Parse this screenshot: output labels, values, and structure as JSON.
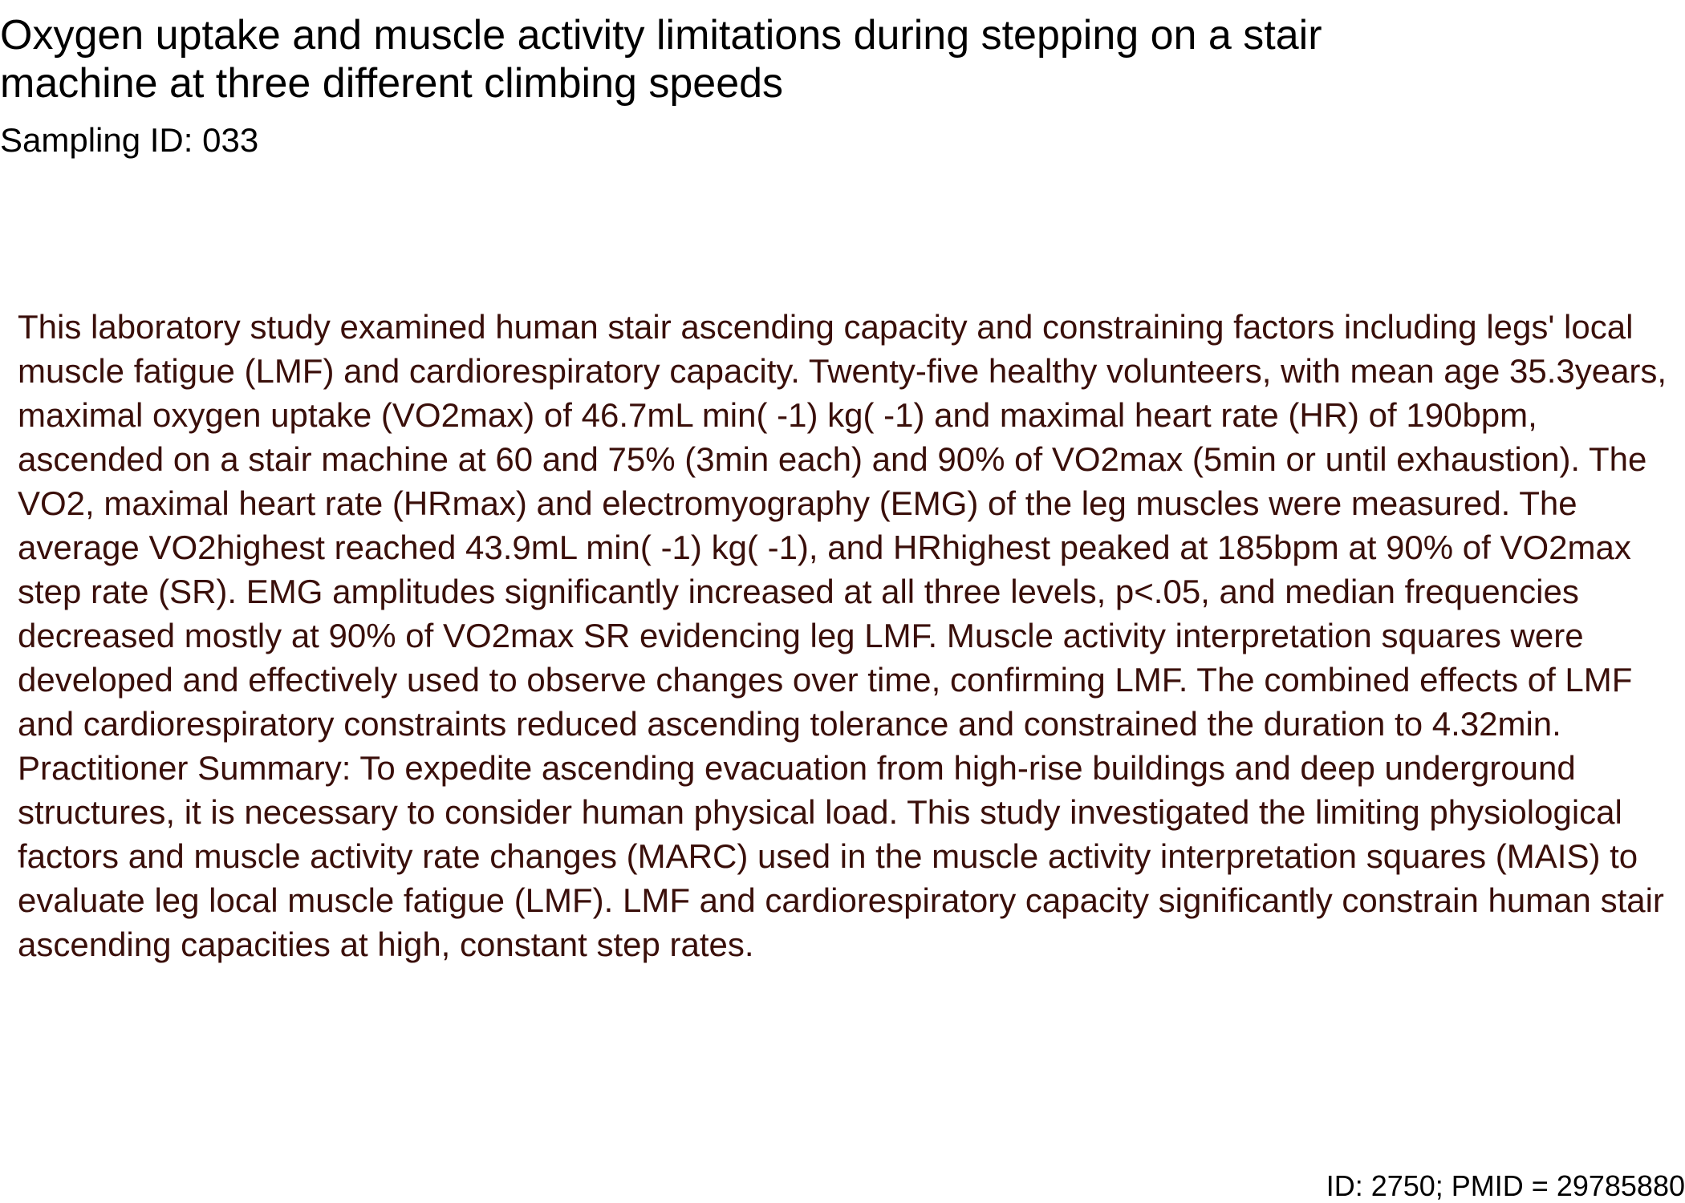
{
  "document": {
    "title": "Oxygen uptake and muscle activity limitations during stepping on a stair machine at three different climbing speeds",
    "sampling_id": "Sampling ID: 033",
    "abstract": "This laboratory study examined human stair ascending capacity and constraining factors including legs' local muscle fatigue (LMF) and cardiorespiratory capacity. Twenty-five healthy volunteers, with mean age 35.3years, maximal oxygen uptake (VO2max) of 46.7mL min( -1) kg( -1) and maximal heart rate (HR) of 190bpm, ascended on a stair machine at 60 and 75% (3min each) and 90% of VO2max (5min or until exhaustion). The VO2, maximal heart rate (HRmax) and electromyography (EMG) of the leg muscles were measured. The average VO2highest reached 43.9mL min( -1) kg( -1), and HRhighest peaked at 185bpm at 90% of VO2max step rate (SR). EMG amplitudes significantly increased at all three levels, p<.05, and median frequencies decreased mostly at 90% of VO2max SR evidencing leg LMF. Muscle activity interpretation squares were developed and effectively used to observe changes over time, confirming LMF. The combined effects of LMF and cardiorespiratory constraints reduced ascending tolerance and constrained the duration to 4.32min. Practitioner Summary: To expedite ascending evacuation from high-rise buildings and deep underground structures, it is necessary to consider human physical load. This study investigated the limiting physiological factors and muscle activity rate changes (MARC) used in the muscle activity interpretation squares (MAIS) to evaluate leg local muscle fatigue (LMF). LMF and cardiorespiratory capacity significantly constrain human stair ascending capacities at high, constant step rates.",
    "footer_id": "ID: 2750; PMID = 29785880"
  },
  "colors": {
    "title_text": "#000000",
    "abstract_text": "#3a0f0a",
    "background": "#ffffff"
  }
}
